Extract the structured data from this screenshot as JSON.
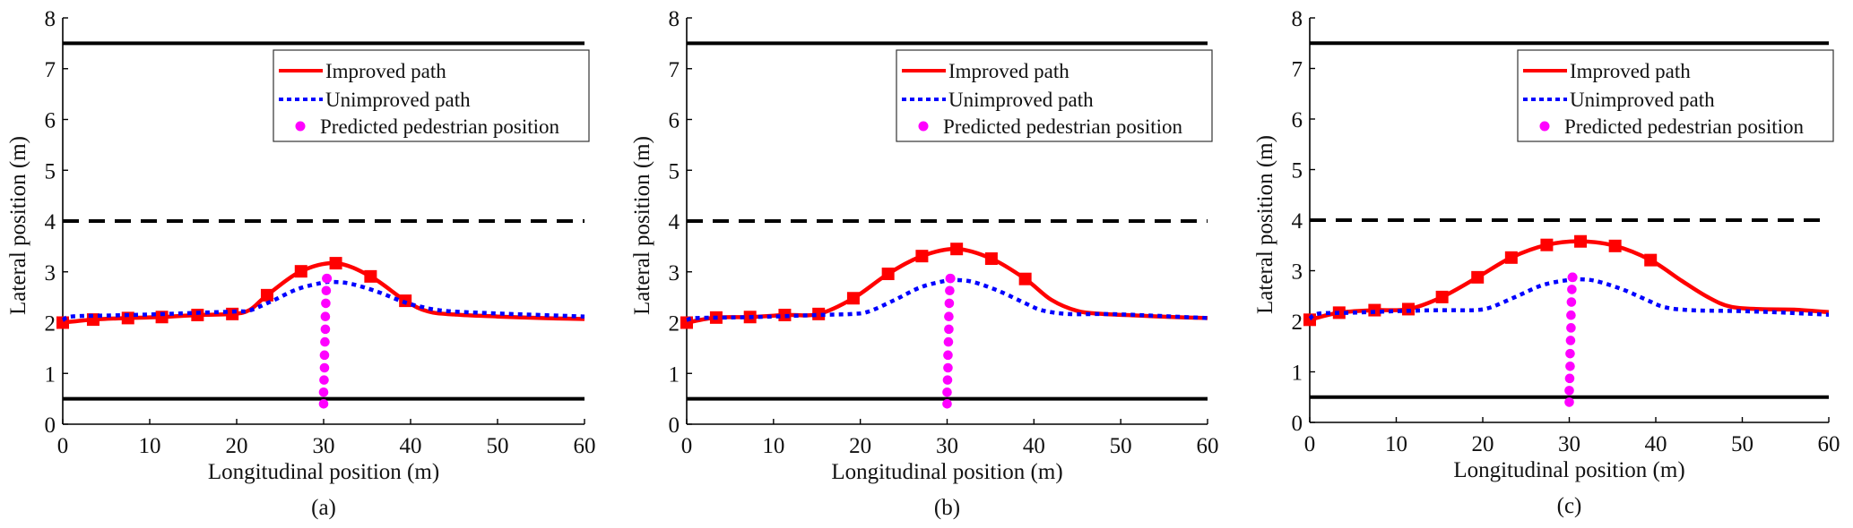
{
  "chart_data": [
    {
      "type": "line",
      "panel_label": "(a)",
      "xlabel": "Longitudinal position (m)",
      "ylabel": "Lateral position (m)",
      "xlim": [
        0,
        60
      ],
      "ylim": [
        0,
        8
      ],
      "xticks": [
        0,
        10,
        20,
        30,
        40,
        50,
        60
      ],
      "yticks": [
        0,
        1,
        2,
        3,
        4,
        5,
        6,
        7,
        8
      ],
      "grid": false,
      "legend_position": "top-right",
      "lane_lines": [
        {
          "name": "road-edge-top",
          "y": 7.5,
          "style": "solid"
        },
        {
          "name": "lane-center",
          "y": 4.0,
          "style": "dashed"
        },
        {
          "name": "road-edge-bottom",
          "y": 0.5,
          "style": "solid"
        }
      ],
      "series": [
        {
          "name": "Improved path",
          "color": "#ff0000",
          "style": "solid",
          "marker": "square",
          "x": [
            0,
            3.5,
            7.5,
            11.4,
            15.5,
            19.5,
            21.5,
            23.5,
            27.4,
            31.4,
            35.4,
            39.4,
            42,
            45,
            50,
            55,
            60
          ],
          "y": [
            2.0,
            2.06,
            2.09,
            2.11,
            2.15,
            2.17,
            2.25,
            2.54,
            3.01,
            3.17,
            2.91,
            2.43,
            2.22,
            2.16,
            2.12,
            2.09,
            2.07
          ],
          "marker_indices": [
            0,
            1,
            2,
            3,
            4,
            5,
            7,
            8,
            9,
            10,
            11
          ]
        },
        {
          "name": "Unimproved path",
          "color": "#0000ff",
          "style": "dotted",
          "marker": "none",
          "x": [
            0,
            1,
            5,
            10,
            15,
            20,
            21.5,
            24,
            27,
            30,
            31,
            33,
            36,
            39,
            41,
            44,
            50,
            55,
            60
          ],
          "y": [
            2.05,
            2.12,
            2.14,
            2.16,
            2.19,
            2.22,
            2.24,
            2.42,
            2.66,
            2.79,
            2.8,
            2.77,
            2.62,
            2.42,
            2.32,
            2.23,
            2.18,
            2.15,
            2.12
          ]
        },
        {
          "name": "Predicted pedestrian position",
          "color": "#ff00ff",
          "style": "none",
          "marker": "circle",
          "x": [
            30.0,
            30.0,
            30.05,
            30.1,
            30.1,
            30.15,
            30.2,
            30.2,
            30.25,
            30.3,
            30.35,
            30.4
          ],
          "y": [
            0.4,
            0.63,
            0.87,
            1.11,
            1.36,
            1.62,
            1.87,
            2.12,
            2.38,
            2.63,
            2.87,
            2.87
          ]
        }
      ]
    },
    {
      "type": "line",
      "panel_label": "(b)",
      "xlabel": "Longitudinal position (m)",
      "ylabel": "Lateral position (m)",
      "xlim": [
        0,
        60
      ],
      "ylim": [
        0,
        8
      ],
      "xticks": [
        0,
        10,
        20,
        30,
        40,
        50,
        60
      ],
      "yticks": [
        0,
        1,
        2,
        3,
        4,
        5,
        6,
        7,
        8
      ],
      "grid": false,
      "legend_position": "top-right",
      "lane_lines": [
        {
          "name": "road-edge-top",
          "y": 7.5,
          "style": "solid"
        },
        {
          "name": "lane-center",
          "y": 4.0,
          "style": "dashed"
        },
        {
          "name": "road-edge-bottom",
          "y": 0.5,
          "style": "solid"
        }
      ],
      "series": [
        {
          "name": "Improved path",
          "color": "#ff0000",
          "style": "solid",
          "marker": "square",
          "x": [
            0,
            3.4,
            7.3,
            11.3,
            15.2,
            19.2,
            23.2,
            27.1,
            31.1,
            35.1,
            39.0,
            42,
            45,
            48,
            52,
            56,
            60
          ],
          "y": [
            2.0,
            2.1,
            2.11,
            2.15,
            2.17,
            2.48,
            2.96,
            3.31,
            3.45,
            3.26,
            2.86,
            2.45,
            2.23,
            2.17,
            2.14,
            2.11,
            2.09
          ],
          "marker_indices": [
            0,
            1,
            2,
            3,
            4,
            5,
            6,
            7,
            8,
            9,
            10
          ]
        },
        {
          "name": "Unimproved path",
          "color": "#0000ff",
          "style": "dotted",
          "marker": "none",
          "x": [
            0,
            1,
            5,
            10,
            15,
            19,
            21,
            24,
            27,
            30,
            31,
            33,
            36,
            39,
            41,
            44,
            48,
            52,
            56,
            60
          ],
          "y": [
            2.05,
            2.09,
            2.1,
            2.12,
            2.15,
            2.17,
            2.22,
            2.45,
            2.7,
            2.83,
            2.84,
            2.8,
            2.62,
            2.38,
            2.24,
            2.17,
            2.17,
            2.15,
            2.12,
            2.09
          ]
        },
        {
          "name": "Predicted pedestrian position",
          "color": "#ff00ff",
          "style": "none",
          "marker": "circle",
          "x": [
            30.0,
            30.0,
            30.05,
            30.1,
            30.1,
            30.15,
            30.2,
            30.2,
            30.25,
            30.3,
            30.35,
            30.4
          ],
          "y": [
            0.4,
            0.63,
            0.87,
            1.11,
            1.36,
            1.62,
            1.87,
            2.12,
            2.38,
            2.63,
            2.87,
            2.87
          ]
        }
      ]
    },
    {
      "type": "line",
      "panel_label": "(c)",
      "xlabel": "Longitudinal position (m)",
      "ylabel": "Lateral position (m)",
      "xlim": [
        0,
        60
      ],
      "ylim": [
        0,
        8
      ],
      "xticks": [
        0,
        10,
        20,
        30,
        40,
        50,
        60
      ],
      "yticks": [
        0,
        1,
        2,
        3,
        4,
        5,
        6,
        7,
        8
      ],
      "grid": false,
      "legend_position": "top-right",
      "lane_lines": [
        {
          "name": "road-edge-top",
          "y": 7.5,
          "style": "solid"
        },
        {
          "name": "lane-center",
          "y": 4.0,
          "style": "dashed"
        },
        {
          "name": "road-edge-bottom",
          "y": 0.5,
          "style": "solid"
        }
      ],
      "series": [
        {
          "name": "Improved path",
          "color": "#ff0000",
          "style": "solid",
          "marker": "square",
          "x": [
            0,
            3.4,
            7.5,
            11.4,
            15.3,
            19.4,
            23.3,
            27.4,
            31.3,
            35.3,
            39.4,
            43,
            46,
            48.6,
            52,
            56,
            60
          ],
          "y": [
            2.03,
            2.17,
            2.22,
            2.24,
            2.48,
            2.87,
            3.26,
            3.51,
            3.58,
            3.49,
            3.21,
            2.8,
            2.48,
            2.29,
            2.24,
            2.23,
            2.18
          ],
          "marker_indices": [
            0,
            1,
            2,
            3,
            4,
            5,
            6,
            7,
            8,
            9,
            10
          ]
        },
        {
          "name": "Unimproved path",
          "color": "#0000ff",
          "style": "dotted",
          "marker": "none",
          "x": [
            0,
            1,
            5,
            10,
            15,
            19,
            21,
            24,
            27,
            30,
            31,
            33,
            36,
            39,
            41,
            44,
            50,
            55,
            60
          ],
          "y": [
            2.05,
            2.15,
            2.17,
            2.2,
            2.22,
            2.22,
            2.28,
            2.5,
            2.72,
            2.82,
            2.83,
            2.8,
            2.64,
            2.42,
            2.28,
            2.22,
            2.2,
            2.17,
            2.13
          ]
        },
        {
          "name": "Predicted pedestrian position",
          "color": "#ff00ff",
          "style": "none",
          "marker": "circle",
          "x": [
            30.0,
            30.0,
            30.05,
            30.1,
            30.1,
            30.15,
            30.2,
            30.2,
            30.25,
            30.3,
            30.35,
            30.4
          ],
          "y": [
            0.4,
            0.63,
            0.87,
            1.11,
            1.36,
            1.62,
            1.87,
            2.12,
            2.38,
            2.63,
            2.87,
            2.87
          ]
        }
      ]
    }
  ]
}
